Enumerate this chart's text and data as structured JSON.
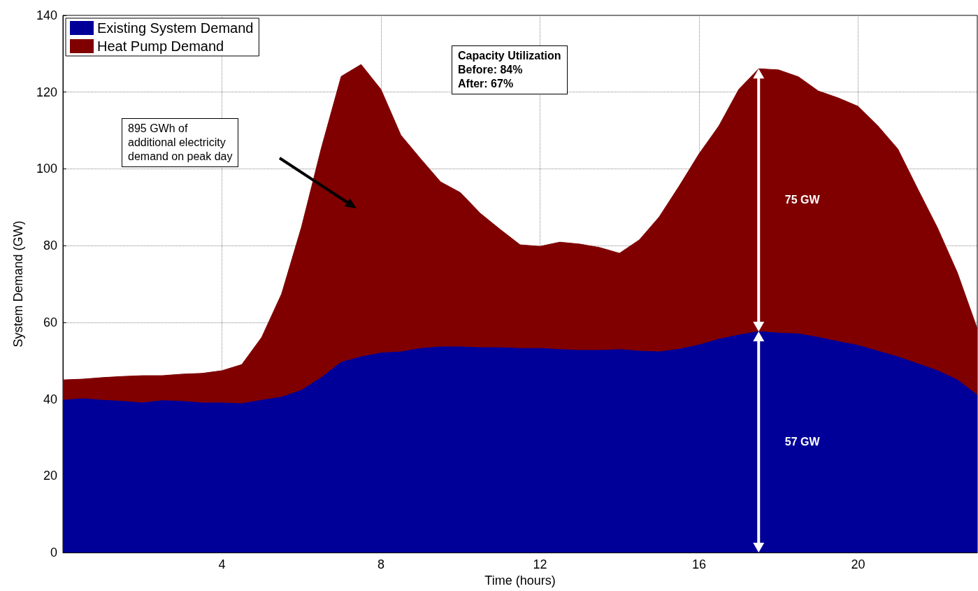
{
  "chart_data": {
    "type": "area",
    "stacked": true,
    "xlabel": "Time (hours)",
    "ylabel": "System Demand (GW)",
    "x": [
      0,
      0.5,
      1,
      1.5,
      2,
      2.5,
      3,
      3.5,
      4,
      4.5,
      5,
      5.5,
      6,
      6.5,
      7,
      7.5,
      8,
      8.5,
      9,
      9.5,
      10,
      10.5,
      11,
      11.5,
      12,
      12.5,
      13,
      13.5,
      14,
      14.5,
      15,
      15.5,
      16,
      16.5,
      17,
      17.5,
      18,
      18.5,
      19,
      19.5,
      20,
      20.5,
      21,
      21.5,
      22,
      22.5,
      23
    ],
    "series": [
      {
        "name": "Existing System Demand",
        "color": "#000099",
        "values": [
          39.7,
          40.1,
          39.7,
          39.4,
          39,
          39.6,
          39.4,
          39,
          39,
          38.8,
          39.7,
          40.5,
          42.3,
          45.6,
          49.6,
          51,
          52,
          52.3,
          53.2,
          53.6,
          53.6,
          53.4,
          53.4,
          53.2,
          53.2,
          52.9,
          52.7,
          52.7,
          52.9,
          52.5,
          52.3,
          53,
          54.1,
          55.6,
          56.7,
          57.6,
          57.2,
          57,
          56.1,
          55,
          54,
          52.5,
          51,
          49.2,
          47.4,
          45,
          41
        ]
      },
      {
        "name": "Heat Pump Demand",
        "color": "#800000",
        "values": [
          5.3,
          5.1,
          5.9,
          6.5,
          7.1,
          6.5,
          7.1,
          7.7,
          8.4,
          10.2,
          16.4,
          26.9,
          42.5,
          59.8,
          74.5,
          76.2,
          68.7,
          56.5,
          49.4,
          43,
          40.2,
          35,
          30.8,
          27,
          26.6,
          28,
          27.7,
          26.8,
          25.1,
          29,
          35.2,
          42.5,
          49.8,
          55.6,
          64,
          68.5,
          68.6,
          67,
          64.2,
          63.5,
          62.3,
          58.7,
          54.2,
          45.6,
          37.2,
          27.9,
          17.3
        ]
      }
    ],
    "xlim": [
      0,
      23
    ],
    "xticks": [
      4,
      8,
      12,
      16,
      20
    ],
    "ylim": [
      0,
      140
    ],
    "yticks": [
      0,
      20,
      40,
      60,
      80,
      100,
      120,
      140
    ],
    "grid": true,
    "legend": "top left",
    "annotations": [
      "895 GWh of\nadditional electricity\ndemand on peak day",
      "Capacity Utilization\nBefore: 84%\nAfter: 67%",
      "75 GW",
      "57 GW"
    ]
  }
}
